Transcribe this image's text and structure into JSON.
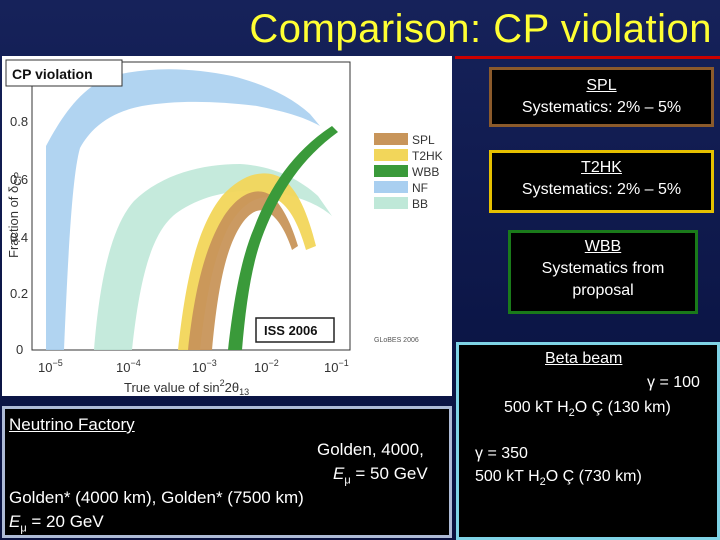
{
  "title": "Comparison: CP violation",
  "figure": {
    "panel_title": "CP violation",
    "y_label": "Fraction of δ",
    "y_label_sub": "CP",
    "y_ticks": [
      "0.8",
      "0.6",
      "0.4",
      "0.2",
      "0"
    ],
    "x_label_prefix": "True value of sin",
    "x_label_sup": "2",
    "x_label_mid": "2θ",
    "x_label_sub": "13",
    "x_ticks": [
      {
        "base": "10",
        "exp": "−5"
      },
      {
        "base": "10",
        "exp": "−4"
      },
      {
        "base": "10",
        "exp": "−3"
      },
      {
        "base": "10",
        "exp": "−2"
      },
      {
        "base": "10",
        "exp": "−1"
      }
    ],
    "legend": [
      {
        "label": "SPL",
        "color": "#c8955a"
      },
      {
        "label": "T2HK",
        "color": "#f2d65a"
      },
      {
        "label": "WBB",
        "color": "#3a9a3a"
      },
      {
        "label": "NF",
        "color": "#a9cff0"
      },
      {
        "label": "BB",
        "color": "#bfe8d8"
      }
    ],
    "badge": "ISS 2006",
    "credit": "GLoBES 2006"
  },
  "boxes": {
    "spl": {
      "name": "SPL",
      "text": "Systematics: 2% – 5%"
    },
    "t2hk": {
      "name": "T2HK",
      "text": "Systematics: 2% – 5%"
    },
    "wbb": {
      "name": "WBB",
      "line1": "Systematics from",
      "line2": "proposal"
    }
  },
  "beta_beam": {
    "title": "Beta beam",
    "gamma1": "γ = 100",
    "detector1": {
      "pre": "500 kT H",
      "sub": "2",
      "post": "O Ç (130 km)"
    },
    "gamma2": "γ = 350",
    "detector2": {
      "pre": "500 kT H",
      "sub": "2",
      "post": "O Ç (730 km)"
    }
  },
  "neutrino_factory": {
    "title": "Neutrino Factory",
    "line1": "Golden, 4000,",
    "line2_pre": "E",
    "line2_sub": "μ",
    "line2_post": " = 50 GeV",
    "line3": "Golden* (4000 km), Golden* (7500 km)",
    "line4_pre": "E",
    "line4_sub": "μ",
    "line4_post": " = 20 GeV"
  }
}
